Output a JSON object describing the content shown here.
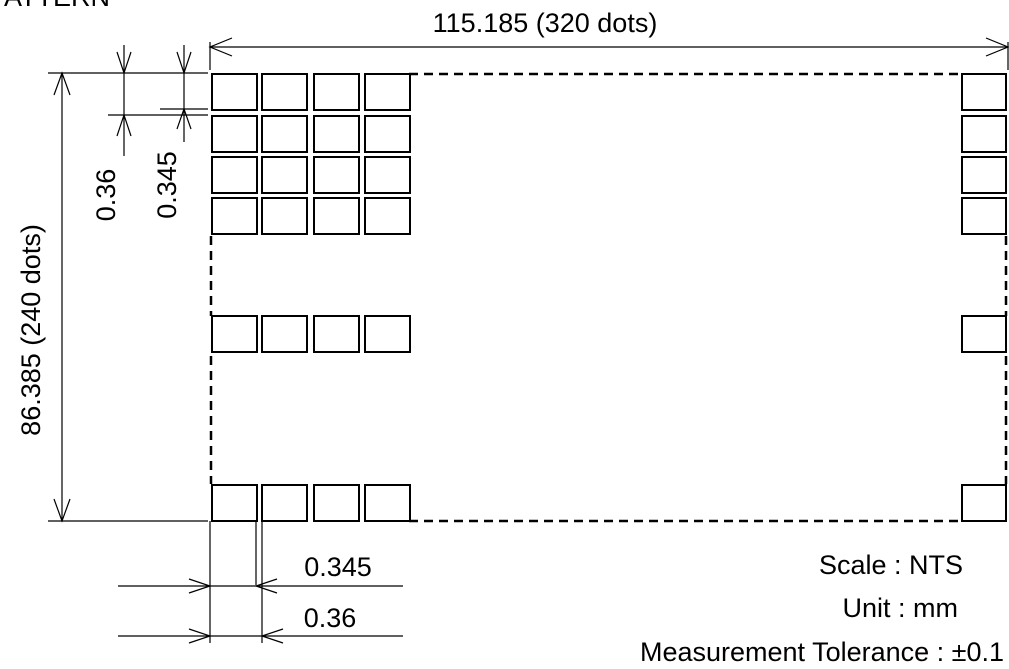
{
  "header": {
    "title_fragment": "PATTERN"
  },
  "dimensions": {
    "width_label": "115.185  (320  dots)",
    "height_label": "86.385  (240  dots)",
    "dot_pitch_v": "0.36",
    "dot_size_v": "0.345",
    "dot_size_h": "0.345",
    "dot_pitch_h": "0.36"
  },
  "notes": {
    "scale": "Scale : NTS",
    "unit": "Unit : mm",
    "tolerance": "Measurement  Tolerance :  ±0.1"
  },
  "pattern": {
    "left_columns": 4,
    "right_columns": 1,
    "top_rows": 4
  }
}
